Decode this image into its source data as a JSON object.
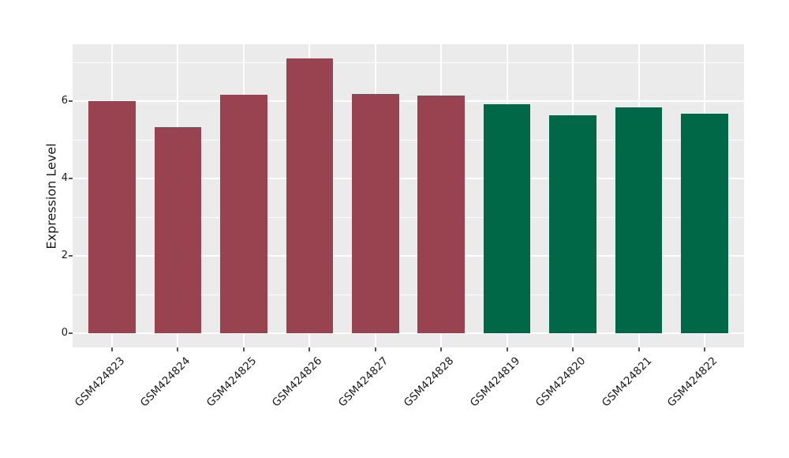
{
  "chart_data": {
    "type": "bar",
    "title": "",
    "xlabel": "",
    "ylabel": "Expression Level",
    "categories": [
      "GSM424823",
      "GSM424824",
      "GSM424825",
      "GSM424826",
      "GSM424827",
      "GSM424828",
      "GSM424819",
      "GSM424820",
      "GSM424821",
      "GSM424822"
    ],
    "values": [
      6.02,
      5.33,
      6.18,
      7.11,
      6.19,
      6.15,
      5.93,
      5.65,
      5.84,
      5.68
    ],
    "bar_color_keys": [
      "red",
      "red",
      "red",
      "red",
      "red",
      "red",
      "green",
      "green",
      "green",
      "green"
    ],
    "palette": {
      "red": "#994350",
      "green": "#006747"
    },
    "ylim": [
      -0.36,
      7.48
    ],
    "yticks_major": [
      0,
      2,
      4,
      6
    ],
    "yticks_minor": [
      1,
      3,
      5,
      7
    ],
    "grid": true,
    "legend_position": "none",
    "panel_background": "#ebebeb",
    "gridline_color": "#ffffff",
    "tick_color": "#555555",
    "text_color": "#1a1a1a"
  }
}
